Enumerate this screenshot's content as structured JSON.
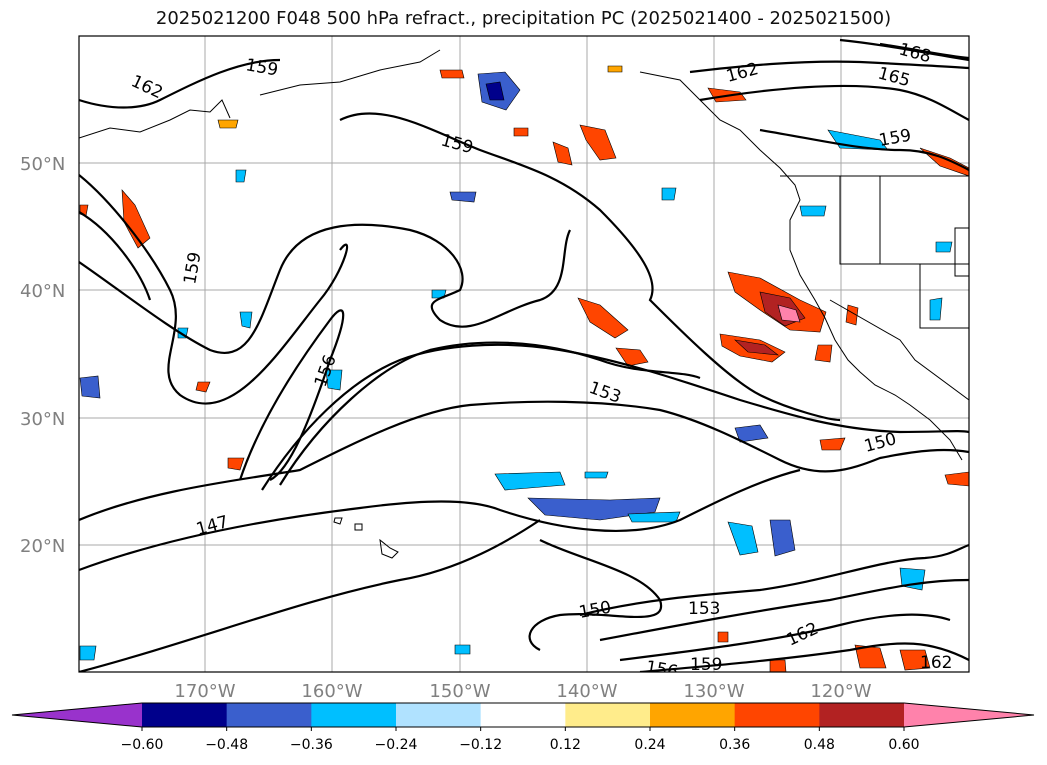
{
  "title": "2025021200 F048 500 hPa refract., precipitation PC (2025021400 - 2025021500)",
  "lat_labels": [
    "50°N",
    "40°N",
    "30°N",
    "20°N"
  ],
  "lon_labels": [
    "170°W",
    "160°W",
    "150°W",
    "140°W",
    "130°W",
    "120°W"
  ],
  "contour_labels": [
    "162",
    "159",
    "159",
    "159",
    "156",
    "153",
    "150",
    "147",
    "150",
    "153",
    "156",
    "159",
    "162",
    "162",
    "162",
    "165",
    "168",
    "159"
  ],
  "colorbar": {
    "ticks": [
      "−0.60",
      "−0.48",
      "−0.36",
      "−0.24",
      "−0.12",
      "0.12",
      "0.24",
      "0.36",
      "0.48",
      "0.60"
    ],
    "colors": [
      "#9932cc",
      "#00008b",
      "#3a5fcd",
      "#00bfff",
      "#b0e2ff",
      "#ffffff",
      "#ffec8b",
      "#ffa500",
      "#ff4500",
      "#b22222",
      "#ff82ab"
    ]
  }
}
